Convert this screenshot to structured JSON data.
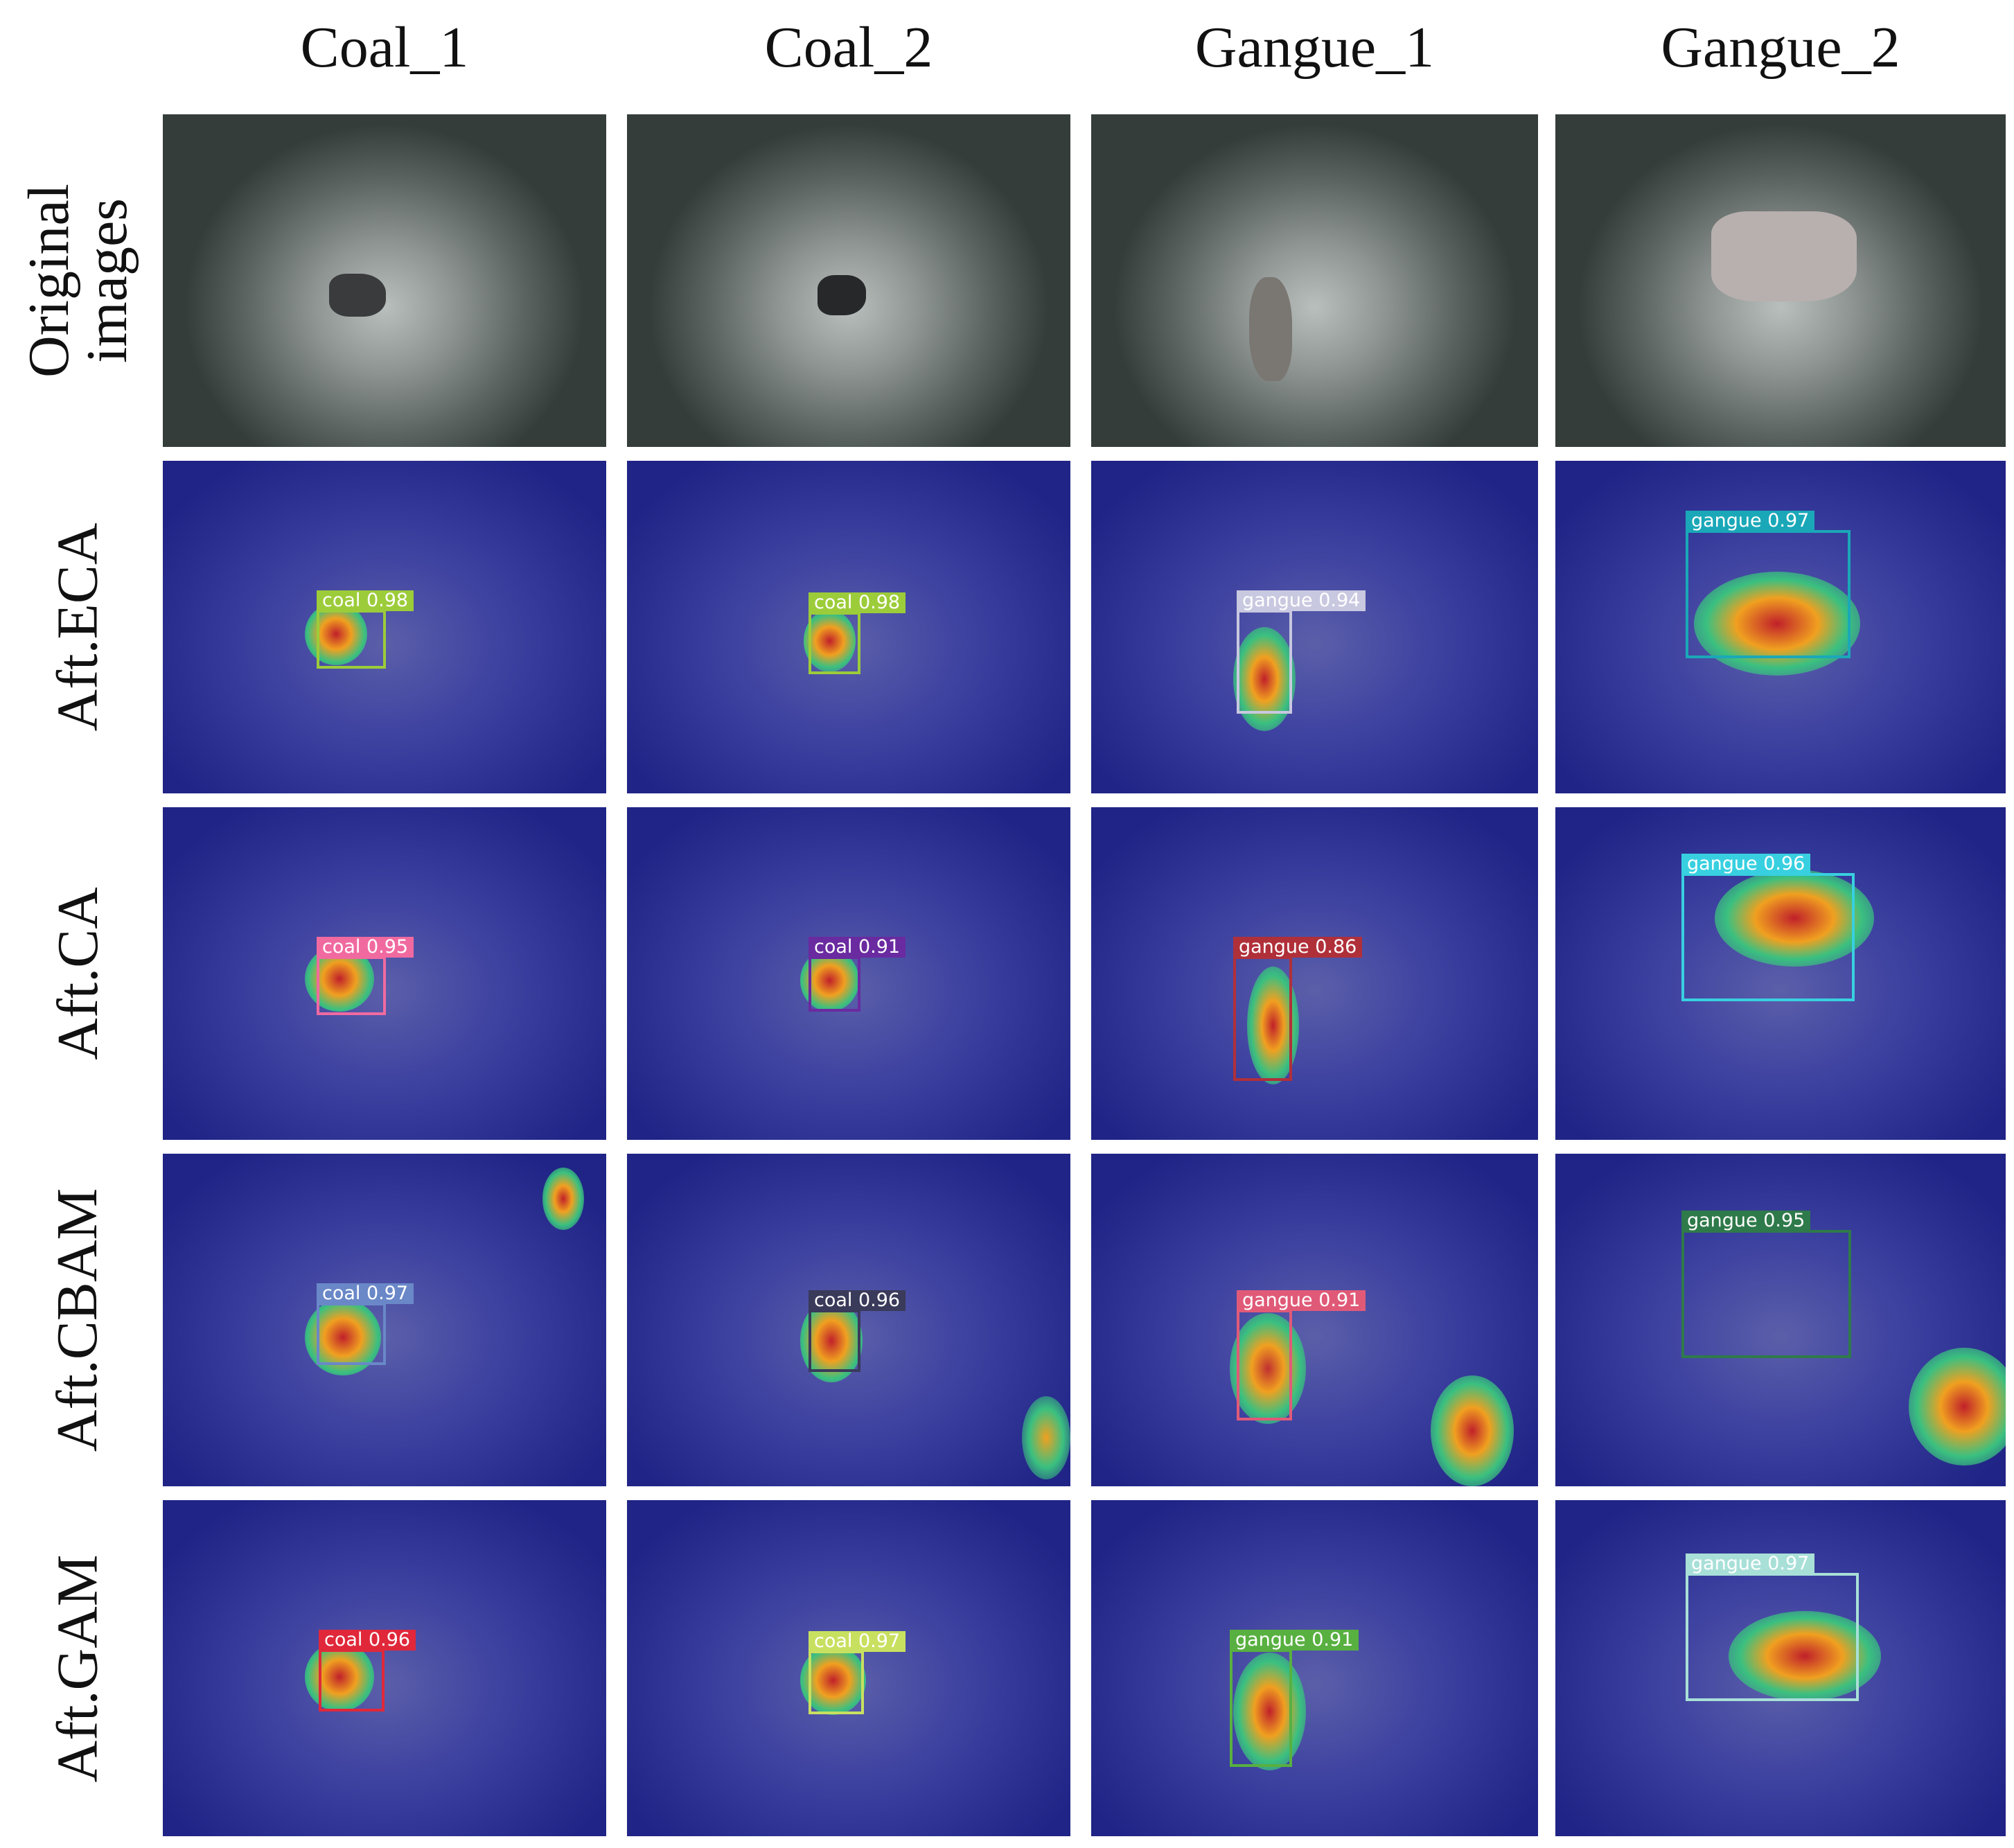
{
  "columns": [
    "Coal_1",
    "Coal_2",
    "Gangue_1",
    "Gangue_2"
  ],
  "rows": [
    {
      "label_line1": "Original",
      "label_line2": "images"
    },
    {
      "label_line1": "Aft.ECA",
      "label_line2": ""
    },
    {
      "label_line1": "Aft.CA",
      "label_line2": ""
    },
    {
      "label_line1": "Aft.CBAM",
      "label_line2": ""
    },
    {
      "label_line1": "Aft.GAM",
      "label_line2": ""
    }
  ],
  "detections": {
    "eca": [
      {
        "label": "coal 0.98",
        "color": "#9ccc3a"
      },
      {
        "label": "coal 0.98",
        "color": "#9ccc3a"
      },
      {
        "label": "gangue 0.94",
        "color": "#c8c8e0"
      },
      {
        "label": "gangue 0.97",
        "color": "#1aa8b8"
      }
    ],
    "ca": [
      {
        "label": "coal 0.95",
        "color": "#f06aa0"
      },
      {
        "label": "coal 0.91",
        "color": "#6a2aa0"
      },
      {
        "label": "gangue 0.86",
        "color": "#b0303a"
      },
      {
        "label": "gangue 0.96",
        "color": "#38d0e0"
      }
    ],
    "cbam": [
      {
        "label": "coal 0.97",
        "color": "#6a88c8"
      },
      {
        "label": "coal 0.96",
        "color": "#3a3a5a"
      },
      {
        "label": "gangue 0.91",
        "color": "#e05a78"
      },
      {
        "label": "gangue 0.95",
        "color": "#2f7a4a"
      }
    ],
    "gam": [
      {
        "label": "coal 0.96",
        "color": "#e0283a"
      },
      {
        "label": "coal 0.97",
        "color": "#c8e060"
      },
      {
        "label": "gangue 0.91",
        "color": "#58b040"
      },
      {
        "label": "gangue 0.97",
        "color": "#a8e0d8"
      }
    ]
  }
}
